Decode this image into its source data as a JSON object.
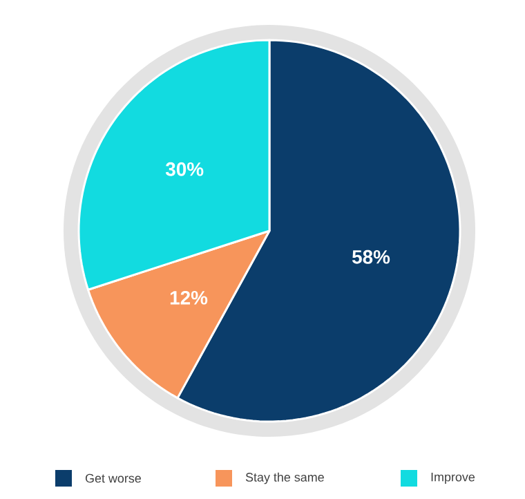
{
  "chart_data": {
    "type": "pie",
    "categories": [
      "Get worse",
      "Stay the same",
      "Improve"
    ],
    "values": [
      58,
      12,
      30
    ],
    "colors": [
      "#0b3d6b",
      "#f7955b",
      "#12dbe0"
    ],
    "value_labels": [
      "58%",
      "12%",
      "30%"
    ],
    "legend": "bottom"
  }
}
